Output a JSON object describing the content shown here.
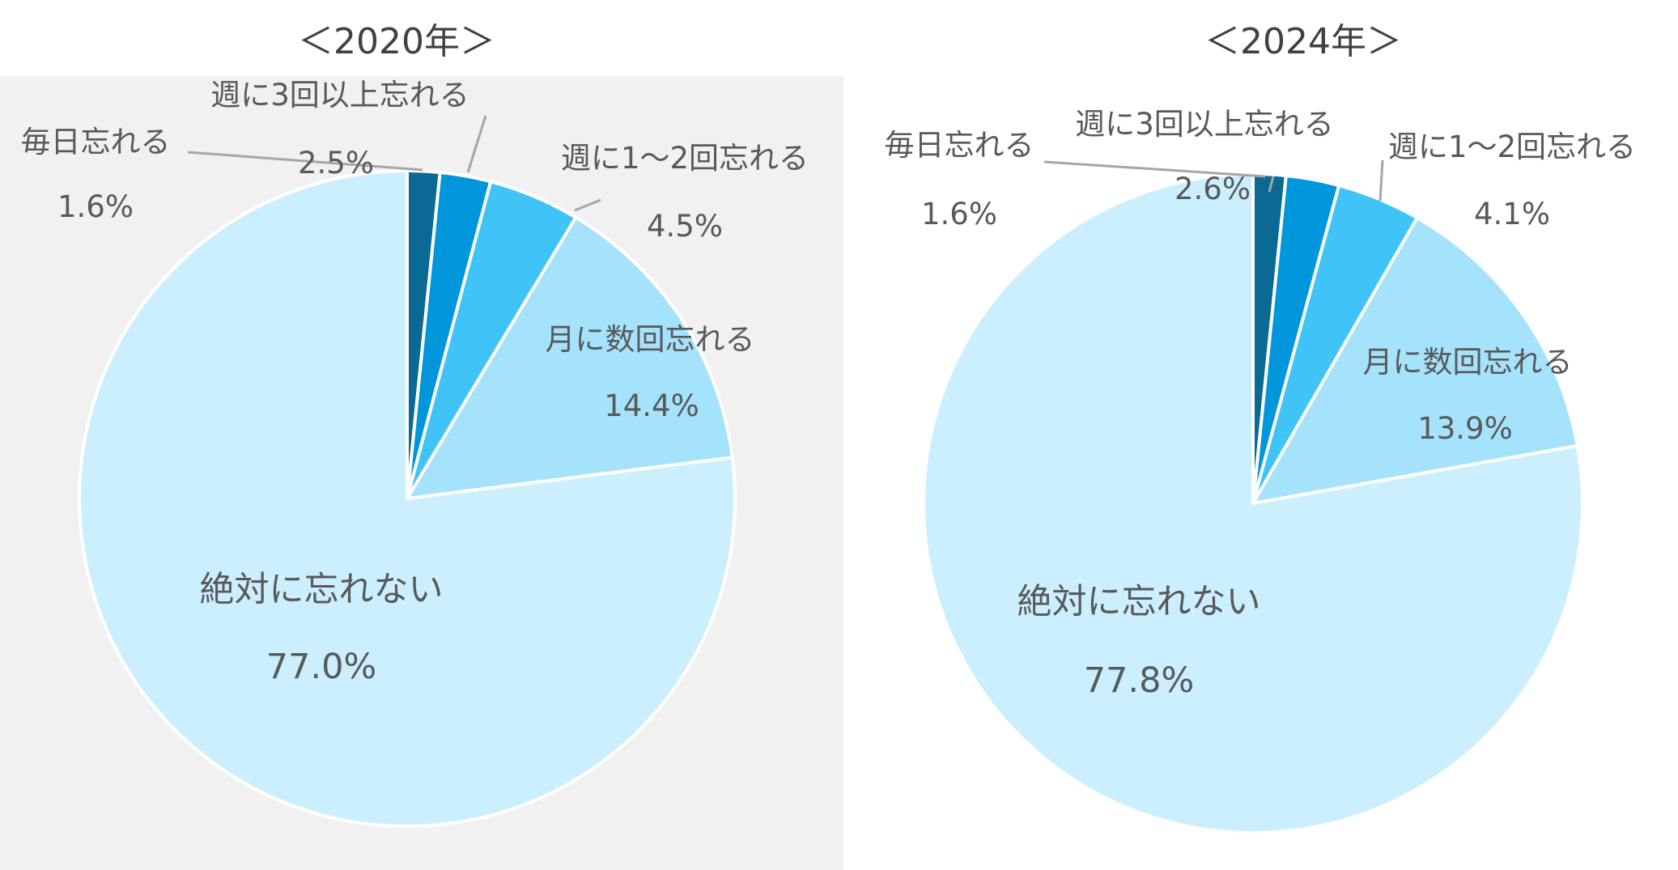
{
  "chart_data": [
    {
      "type": "pie",
      "title": "＜2020年＞",
      "categories": [
        "毎日忘れる",
        "週に3回以上忘れる",
        "週に1～2回忘れる",
        "月に数回忘れる",
        "絶対に忘れない"
      ],
      "values": [
        1.6,
        2.5,
        4.5,
        14.4,
        77.0
      ],
      "value_labels": [
        "1.6%",
        "2.5%",
        "4.5%",
        "14.4%",
        "77.0%"
      ],
      "colors": [
        "#0a6a94",
        "#0096dc",
        "#40c4f7",
        "#a5e2fc",
        "#ccefff"
      ],
      "legend": "none"
    },
    {
      "type": "pie",
      "title": "＜2024年＞",
      "categories": [
        "毎日忘れる",
        "週に3回以上忘れる",
        "週に1～2回忘れる",
        "月に数回忘れる",
        "絶対に忘れない"
      ],
      "values": [
        1.6,
        2.6,
        4.1,
        13.9,
        77.8
      ],
      "value_labels": [
        "1.6%",
        "2.6%",
        "4.1%",
        "13.9%",
        "77.8%"
      ],
      "colors": [
        "#0a6a94",
        "#0096dc",
        "#40c4f7",
        "#a5e2fc",
        "#ccefff"
      ],
      "legend": "none"
    }
  ]
}
